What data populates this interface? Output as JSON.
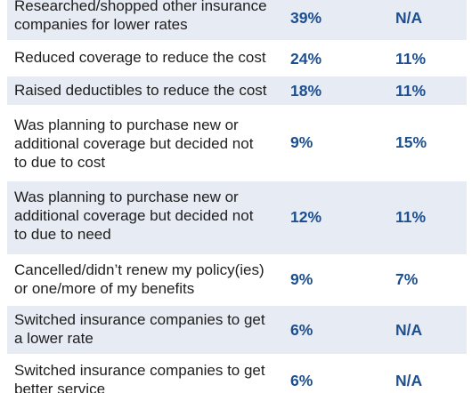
{
  "rows": [
    {
      "label_lines": [
        "Researched/shopped other insurance",
        "companies for lower rates"
      ],
      "col1": "39%",
      "col2": "N/A"
    },
    {
      "label_lines": [
        "Reduced coverage to reduce the cost"
      ],
      "col1": "24%",
      "col2": "11%"
    },
    {
      "label_lines": [
        "Raised deductibles to reduce the cost"
      ],
      "col1": "18%",
      "col2": "11%"
    },
    {
      "label_lines": [
        "Was planning to purchase new or",
        "additional coverage but decided not",
        "to due to cost"
      ],
      "col1": "9%",
      "col2": "15%"
    },
    {
      "label_lines": [
        "Was planning to purchase new or",
        "additional coverage but decided not",
        "to due to need"
      ],
      "col1": "12%",
      "col2": "11%"
    },
    {
      "label_lines": [
        "Cancelled/didn’t renew my policy(ies)",
        "or one/more of my benefits"
      ],
      "col1": "9%",
      "col2": "7%"
    },
    {
      "label_lines": [
        "Switched insurance companies to get",
        "a lower rate"
      ],
      "col1": "6%",
      "col2": "N/A"
    },
    {
      "label_lines": [
        "Switched insurance companies to get",
        "better service"
      ],
      "col1": "6%",
      "col2": "N/A"
    }
  ]
}
